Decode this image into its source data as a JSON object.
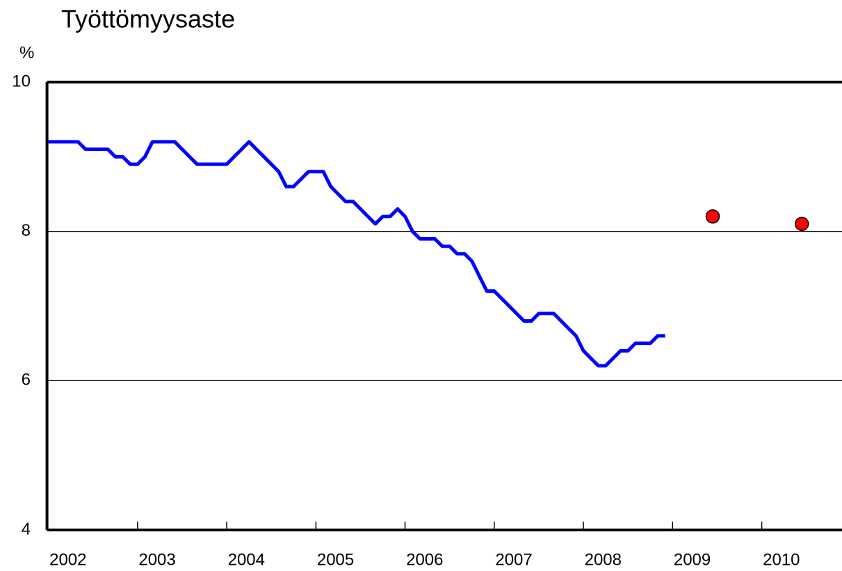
{
  "chart_data": {
    "type": "line",
    "title": "Työttömyysaste",
    "y_label": "%",
    "x": [
      2002,
      2002.083,
      2002.167,
      2002.25,
      2002.333,
      2002.417,
      2002.5,
      2002.583,
      2002.667,
      2002.75,
      2002.833,
      2002.917,
      2003,
      2003.083,
      2003.167,
      2003.25,
      2003.333,
      2003.417,
      2003.5,
      2003.583,
      2003.667,
      2003.75,
      2003.833,
      2003.917,
      2004,
      2004.083,
      2004.167,
      2004.25,
      2004.333,
      2004.417,
      2004.5,
      2004.583,
      2004.667,
      2004.75,
      2004.833,
      2004.917,
      2005,
      2005.083,
      2005.167,
      2005.25,
      2005.333,
      2005.417,
      2005.5,
      2005.583,
      2005.667,
      2005.75,
      2005.833,
      2005.917,
      2006,
      2006.083,
      2006.167,
      2006.25,
      2006.333,
      2006.417,
      2006.5,
      2006.583,
      2006.667,
      2006.75,
      2006.833,
      2006.917,
      2007,
      2007.083,
      2007.167,
      2007.25,
      2007.333,
      2007.417,
      2007.5,
      2007.583,
      2007.667,
      2007.75,
      2007.833,
      2007.917,
      2008,
      2008.083,
      2008.167,
      2008.25,
      2008.333,
      2008.417,
      2008.5,
      2008.583,
      2008.667,
      2008.75,
      2008.833,
      2008.917
    ],
    "series": [
      {
        "color": "#0000ff",
        "values": [
          9.2,
          9.2,
          9.2,
          9.2,
          9.2,
          9.1,
          9.1,
          9.1,
          9.1,
          9.0,
          9.0,
          8.9,
          8.9,
          9.0,
          9.2,
          9.2,
          9.2,
          9.2,
          9.1,
          9.0,
          8.9,
          8.9,
          8.9,
          8.9,
          8.9,
          9.0,
          9.1,
          9.2,
          9.1,
          9.0,
          8.9,
          8.8,
          8.6,
          8.6,
          8.7,
          8.8,
          8.8,
          8.8,
          8.6,
          8.5,
          8.4,
          8.4,
          8.3,
          8.2,
          8.1,
          8.2,
          8.2,
          8.3,
          8.2,
          8.0,
          7.9,
          7.9,
          7.9,
          7.8,
          7.8,
          7.7,
          7.7,
          7.6,
          7.4,
          7.2,
          7.2,
          7.1,
          7.0,
          6.9,
          6.8,
          6.8,
          6.9,
          6.9,
          6.9,
          6.8,
          6.7,
          6.6,
          6.4,
          6.3,
          6.2,
          6.2,
          6.3,
          6.4,
          6.4,
          6.5,
          6.5,
          6.5,
          6.6,
          6.6
        ]
      }
    ],
    "forecast": {
      "color": "#ff0000",
      "x": [
        2009.45,
        2010.45
      ],
      "values": [
        8.2,
        8.1
      ]
    },
    "xlim": [
      2002,
      2010.9
    ],
    "xticks": [
      2002,
      2003,
      2004,
      2005,
      2006,
      2007,
      2008,
      2009,
      2010
    ],
    "ylim": [
      4,
      10
    ],
    "yticks": [
      4,
      6,
      8,
      10
    ],
    "grid": true
  }
}
